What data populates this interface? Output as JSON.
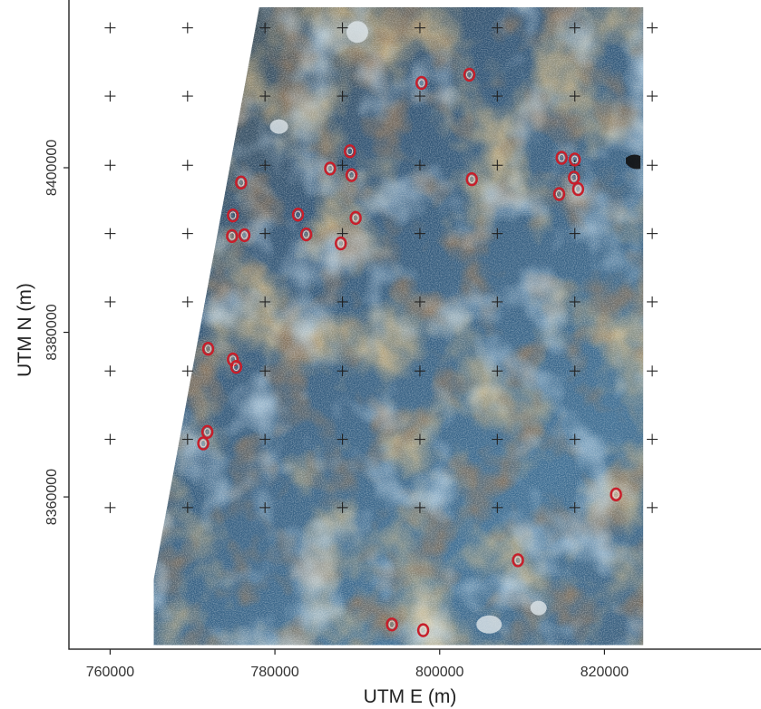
{
  "map": {
    "xlabel": "UTM E (m)",
    "ylabel": "UTM N (m)",
    "xlim": [
      755000,
      839000
    ],
    "ylim": [
      8341500,
      8419500
    ],
    "x_ticks": [
      {
        "value": 760000,
        "label": "760000"
      },
      {
        "value": 780000,
        "label": "780000"
      },
      {
        "value": 800000,
        "label": "800000"
      },
      {
        "value": 820000,
        "label": "820000"
      }
    ],
    "y_ticks": [
      {
        "value": 8360000,
        "label": "8360000"
      },
      {
        "value": 8380000,
        "label": "8380000"
      },
      {
        "value": 8400000,
        "label": "8400000"
      }
    ],
    "grid_cross_x": [
      760000,
      769400,
      778800,
      788200,
      797600,
      807000,
      816400,
      825800
    ],
    "grid_cross_y": [
      8358700,
      8367000,
      8375300,
      8383700,
      8392000,
      8400300,
      8408700,
      8417000
    ],
    "image_extent": {
      "x": [
        765300,
        824700
      ],
      "y_top": 8419500,
      "y_bottom": 8342000,
      "left_edge_top_x": 778100
    },
    "colors": {
      "deep_blue": "#25425c",
      "blue": "#3d6a90",
      "light_blue": "#7fa6c0",
      "brown": "#6b4a2a",
      "dark_brown": "#3a2a1c",
      "orange": "#c08a40",
      "white_patch": "#dfe6ea",
      "marker": "#c81e2a"
    }
  },
  "sites": [
    {
      "x": 797800,
      "y": 8410300
    },
    {
      "x": 803600,
      "y": 8411300
    },
    {
      "x": 789100,
      "y": 8402000
    },
    {
      "x": 786700,
      "y": 8399900
    },
    {
      "x": 789300,
      "y": 8399100
    },
    {
      "x": 803900,
      "y": 8398600
    },
    {
      "x": 814800,
      "y": 8401200
    },
    {
      "x": 816400,
      "y": 8401000
    },
    {
      "x": 816300,
      "y": 8398800
    },
    {
      "x": 816800,
      "y": 8397400
    },
    {
      "x": 814500,
      "y": 8396800
    },
    {
      "x": 775900,
      "y": 8398200
    },
    {
      "x": 774900,
      "y": 8394200
    },
    {
      "x": 782800,
      "y": 8394300
    },
    {
      "x": 789800,
      "y": 8393900
    },
    {
      "x": 774800,
      "y": 8391700
    },
    {
      "x": 776300,
      "y": 8391800
    },
    {
      "x": 783800,
      "y": 8391900
    },
    {
      "x": 788000,
      "y": 8390800
    },
    {
      "x": 771900,
      "y": 8378000
    },
    {
      "x": 774900,
      "y": 8376700
    },
    {
      "x": 775300,
      "y": 8375800
    },
    {
      "x": 771800,
      "y": 8367900
    },
    {
      "x": 771300,
      "y": 8366500
    },
    {
      "x": 821400,
      "y": 8360300
    },
    {
      "x": 809500,
      "y": 8352300
    },
    {
      "x": 794200,
      "y": 8344500
    },
    {
      "x": 798000,
      "y": 8343800
    }
  ]
}
